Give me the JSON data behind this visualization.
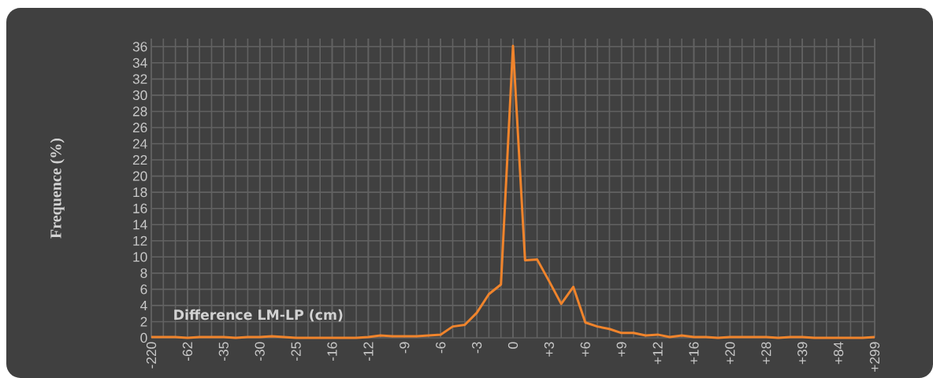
{
  "chart_data": {
    "type": "line",
    "xlabel": "Difference LM-LP (cm)",
    "ylabel": "Frequence (%)",
    "categories": [
      "-220",
      null,
      null,
      "-62",
      null,
      null,
      "-35",
      null,
      null,
      "-30",
      null,
      null,
      "-25",
      null,
      null,
      "-16",
      null,
      null,
      "-12",
      null,
      null,
      "-9",
      null,
      null,
      "-6",
      null,
      null,
      "-3",
      null,
      null,
      "0",
      null,
      null,
      "+3",
      null,
      null,
      "+6",
      null,
      null,
      "+9",
      null,
      null,
      "+12",
      null,
      null,
      "+16",
      null,
      null,
      "+20",
      null,
      null,
      "+28",
      null,
      null,
      "+39",
      null,
      null,
      "+84",
      null,
      null,
      "+299"
    ],
    "series": [
      {
        "color": "#f0842c",
        "values": [
          0.1,
          0.1,
          0.1,
          0.0,
          0.1,
          0.1,
          0.1,
          0.0,
          0.1,
          0.1,
          0.2,
          0.1,
          0.0,
          0.0,
          0.0,
          0.0,
          0.0,
          0.0,
          0.1,
          0.3,
          0.2,
          0.2,
          0.2,
          0.3,
          0.4,
          1.4,
          1.6,
          3.1,
          5.4,
          6.6,
          36.1,
          9.6,
          9.7,
          7.0,
          4.2,
          6.3,
          1.9,
          1.4,
          1.1,
          0.6,
          0.6,
          0.3,
          0.4,
          0.1,
          0.3,
          0.1,
          0.1,
          0.0,
          0.1,
          0.1,
          0.1,
          0.1,
          0.0,
          0.1,
          0.1,
          0.0,
          0.0,
          0.0,
          0.0,
          0.0,
          0.1
        ]
      }
    ],
    "ylim": [
      0,
      37
    ],
    "yticks": [
      0,
      2,
      4,
      6,
      8,
      10,
      12,
      14,
      16,
      18,
      20,
      22,
      24,
      26,
      28,
      30,
      32,
      34,
      36
    ],
    "grid": true,
    "marker": "none",
    "line_style": "solid"
  }
}
